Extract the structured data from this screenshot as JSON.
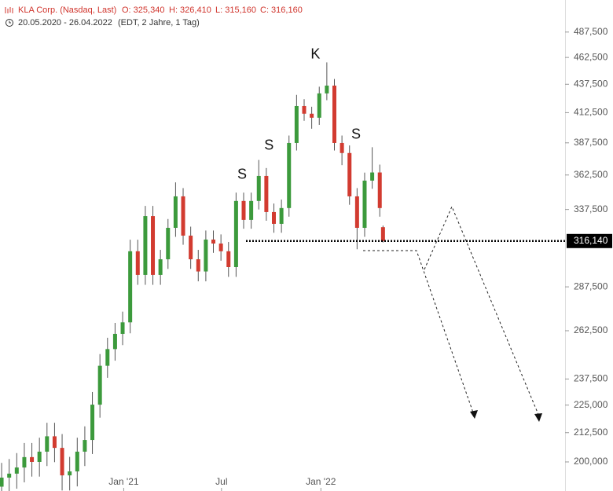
{
  "chart_data": {
    "type": "candlestick",
    "title": "KLA Corp. (Nasdaq, Last)",
    "ohlc_labels": [
      "O: 325,340",
      "H: 326,410",
      "L: 315,160",
      "C: 316,160"
    ],
    "subtitle": "20.05.2020 - 26.04.2022",
    "subtitle_note": "(EDT, 2 Jahre, 1 Tag)",
    "x": [
      "2020-05-20",
      "2020-06-03",
      "2020-06-17",
      "2020-07-01",
      "2020-07-15",
      "2020-07-29",
      "2020-08-12",
      "2020-08-26",
      "2020-09-09",
      "2020-09-23",
      "2020-10-07",
      "2020-10-21",
      "2020-11-04",
      "2020-11-18",
      "2020-12-02",
      "2020-12-16",
      "2020-12-30",
      "2021-01-13",
      "2021-01-27",
      "2021-02-10",
      "2021-02-24",
      "2021-03-10",
      "2021-03-24",
      "2021-04-07",
      "2021-04-21",
      "2021-05-05",
      "2021-05-19",
      "2021-06-02",
      "2021-06-16",
      "2021-06-30",
      "2021-07-14",
      "2021-07-28",
      "2021-08-11",
      "2021-08-25",
      "2021-09-08",
      "2021-09-22",
      "2021-10-06",
      "2021-10-20",
      "2021-11-03",
      "2021-11-17",
      "2021-12-01",
      "2021-12-15",
      "2021-12-29",
      "2022-01-12",
      "2022-01-26",
      "2022-02-09",
      "2022-02-23",
      "2022-03-09",
      "2022-03-23",
      "2022-04-06",
      "2022-04-20",
      "2022-04-26"
    ],
    "open": [
      190000,
      193600,
      195200,
      197700,
      202000,
      200000,
      204300,
      210900,
      205900,
      194500,
      196100,
      204300,
      209300,
      225200,
      244100,
      252700,
      260800,
      267100,
      309500,
      294700,
      332900,
      294700,
      304400,
      324900,
      346800,
      319700,
      304400,
      296800,
      317100,
      314500,
      309500,
      299500,
      343500,
      330300,
      343500,
      361800,
      335700,
      327600,
      338500,
      387400,
      418200,
      411600,
      408200,
      429300,
      436300,
      387400,
      379400,
      346800,
      324900,
      358300,
      364400,
      325340
    ],
    "high": [
      199600,
      201200,
      203700,
      208000,
      208000,
      210300,
      216900,
      216900,
      211900,
      202100,
      210300,
      215300,
      231200,
      250100,
      258700,
      266800,
      273100,
      317000,
      317000,
      340000,
      340000,
      310400,
      330900,
      357000,
      352800,
      325700,
      310400,
      323100,
      323100,
      320500,
      315500,
      349500,
      349500,
      349500,
      374000,
      367800,
      341700,
      344500,
      393400,
      428000,
      424200,
      417600,
      435300,
      457800,
      442300,
      393400,
      385400,
      352800,
      364300,
      384000,
      370400,
      326410
    ],
    "low": [
      184000,
      187600,
      189200,
      191700,
      194000,
      194000,
      198300,
      199900,
      188500,
      188500,
      190100,
      198300,
      203300,
      219200,
      238100,
      246700,
      254800,
      261100,
      288700,
      288700,
      288700,
      288700,
      298400,
      318900,
      313700,
      298400,
      290800,
      290800,
      308500,
      303500,
      293500,
      293500,
      324300,
      324300,
      337500,
      329700,
      321600,
      321600,
      332500,
      381400,
      405600,
      399000,
      402200,
      423300,
      381400,
      370000,
      340800,
      310800,
      318900,
      352300,
      332500,
      315160
    ],
    "close": [
      193600,
      195200,
      197700,
      202000,
      200000,
      204300,
      210900,
      205900,
      194500,
      196100,
      204300,
      209300,
      225200,
      244100,
      252700,
      260800,
      267100,
      309500,
      294700,
      332900,
      294700,
      304400,
      324900,
      346800,
      319700,
      304400,
      296800,
      317100,
      314500,
      309500,
      299500,
      343500,
      330300,
      343500,
      361800,
      335700,
      327600,
      338500,
      387400,
      418200,
      411600,
      408200,
      429300,
      436300,
      387400,
      379400,
      346800,
      324900,
      358300,
      364400,
      338500,
      316160
    ],
    "up_color": "#3c9a3c",
    "down_color": "#d23b30",
    "last_price": 316140,
    "last_price_label": "316,140",
    "support": 316140,
    "log_scale": true,
    "xlim": [
      "2020-05-17",
      "2023-03-29"
    ],
    "xticks": [
      {
        "value": "2021-01-01",
        "label": "Jan '21"
      },
      {
        "value": "2021-07-01",
        "label": "Jul"
      },
      {
        "value": "2022-01-01",
        "label": "Jan '22"
      }
    ],
    "ylim": [
      188300,
      521000
    ],
    "yticks": [
      {
        "value": 200000,
        "label": "200,000"
      },
      {
        "value": 212500,
        "label": "212,500"
      },
      {
        "value": 225000,
        "label": "225,000"
      },
      {
        "value": 237500,
        "label": "237,500"
      },
      {
        "value": 262500,
        "label": "262,500"
      },
      {
        "value": 287500,
        "label": "287,500"
      },
      {
        "value": 337500,
        "label": "337,500"
      },
      {
        "value": 362500,
        "label": "362,500"
      },
      {
        "value": 387500,
        "label": "387,500"
      },
      {
        "value": 412500,
        "label": "412,500"
      },
      {
        "value": 437500,
        "label": "437,500"
      },
      {
        "value": 462500,
        "label": "462,500"
      },
      {
        "value": 487500,
        "label": "487,500"
      }
    ],
    "annotations": [
      {
        "text": "S",
        "x": "2021-08-08",
        "y": 362500
      },
      {
        "text": "S",
        "x": "2021-09-27",
        "y": 385000
      },
      {
        "text": "K",
        "x": "2021-12-22",
        "y": 465000
      },
      {
        "text": "S",
        "x": "2022-03-07",
        "y": 394000
      }
    ]
  }
}
